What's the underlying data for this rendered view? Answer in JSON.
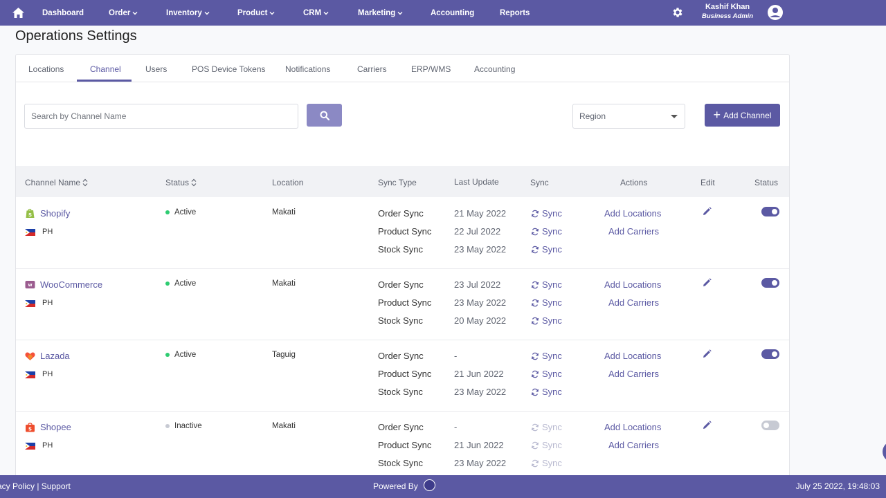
{
  "nav": {
    "items": [
      {
        "label": "Dashboard",
        "caret": false
      },
      {
        "label": "Order",
        "caret": true
      },
      {
        "label": "Inventory",
        "caret": true
      },
      {
        "label": "Product",
        "caret": true
      },
      {
        "label": "CRM",
        "caret": true
      },
      {
        "label": "Marketing",
        "caret": true
      },
      {
        "label": "Accounting",
        "caret": false
      },
      {
        "label": "Reports",
        "caret": false
      }
    ],
    "user_name": "Kashif Khan",
    "user_role": "Business Admin"
  },
  "page_title": "Operations Settings",
  "tabs": [
    "Locations",
    "Channel",
    "Users",
    "POS Device Tokens",
    "Notifications",
    "Carriers",
    "ERP/WMS",
    "Accounting"
  ],
  "active_tab": "Channel",
  "toolbar": {
    "search_placeholder": "Search by Channel Name",
    "region_placeholder": "Region",
    "add_channel_label": "Add Channel"
  },
  "table": {
    "headers": {
      "channel_name": "Channel Name",
      "status": "Status",
      "location": "Location",
      "sync_type": "Sync Type",
      "last_update": "Last Update",
      "sync": "Sync",
      "actions": "Actions",
      "edit": "Edit",
      "status_toggle": "Status"
    },
    "rows": [
      {
        "channel": "Shopify",
        "country": "PH",
        "status": "Active",
        "location": "Makati",
        "enabled": true,
        "syncs": [
          {
            "type": "Order Sync",
            "last": "21 May 2022",
            "label": "Sync"
          },
          {
            "type": "Product Sync",
            "last": "22 Jul 2022",
            "label": "Sync"
          },
          {
            "type": "Stock Sync",
            "last": "23 May 2022",
            "label": "Sync"
          }
        ],
        "actions": [
          "Add Locations",
          "Add Carriers"
        ]
      },
      {
        "channel": "WooCommerce",
        "country": "PH",
        "status": "Active",
        "location": "Makati",
        "enabled": true,
        "syncs": [
          {
            "type": "Order Sync",
            "last": "23 Jul 2022",
            "label": "Sync"
          },
          {
            "type": "Product Sync",
            "last": "23 May 2022",
            "label": "Sync"
          },
          {
            "type": "Stock Sync",
            "last": "20 May 2022",
            "label": "Sync"
          }
        ],
        "actions": [
          "Add Locations",
          "Add Carriers"
        ]
      },
      {
        "channel": "Lazada",
        "country": "PH",
        "status": "Active",
        "location": "Taguig",
        "enabled": true,
        "syncs": [
          {
            "type": "Order Sync",
            "last": "-",
            "label": "Sync"
          },
          {
            "type": "Product Sync",
            "last": "21 Jun 2022",
            "label": "Sync"
          },
          {
            "type": "Stock Sync",
            "last": "23 May 2022",
            "label": "Sync"
          }
        ],
        "actions": [
          "Add Locations",
          "Add Carriers"
        ]
      },
      {
        "channel": "Shopee",
        "country": "PH",
        "status": "Inactive",
        "location": "Makati",
        "enabled": false,
        "syncs": [
          {
            "type": "Order Sync",
            "last": "-",
            "label": "Sync"
          },
          {
            "type": "Product Sync",
            "last": "21 Jun 2022",
            "label": "Sync"
          },
          {
            "type": "Stock Sync",
            "last": "23 May 2022",
            "label": "Sync"
          }
        ],
        "actions": [
          "Add Locations",
          "Add Carriers"
        ]
      }
    ]
  },
  "footer": {
    "left": "acy Policy | Support",
    "powered_by": "Powered By",
    "datetime": "July 25 2022, 19:48:03"
  },
  "colors": {
    "brand": "#5b59a3",
    "active_dot": "#2ecc71",
    "inactive_dot": "#c7cad3"
  }
}
